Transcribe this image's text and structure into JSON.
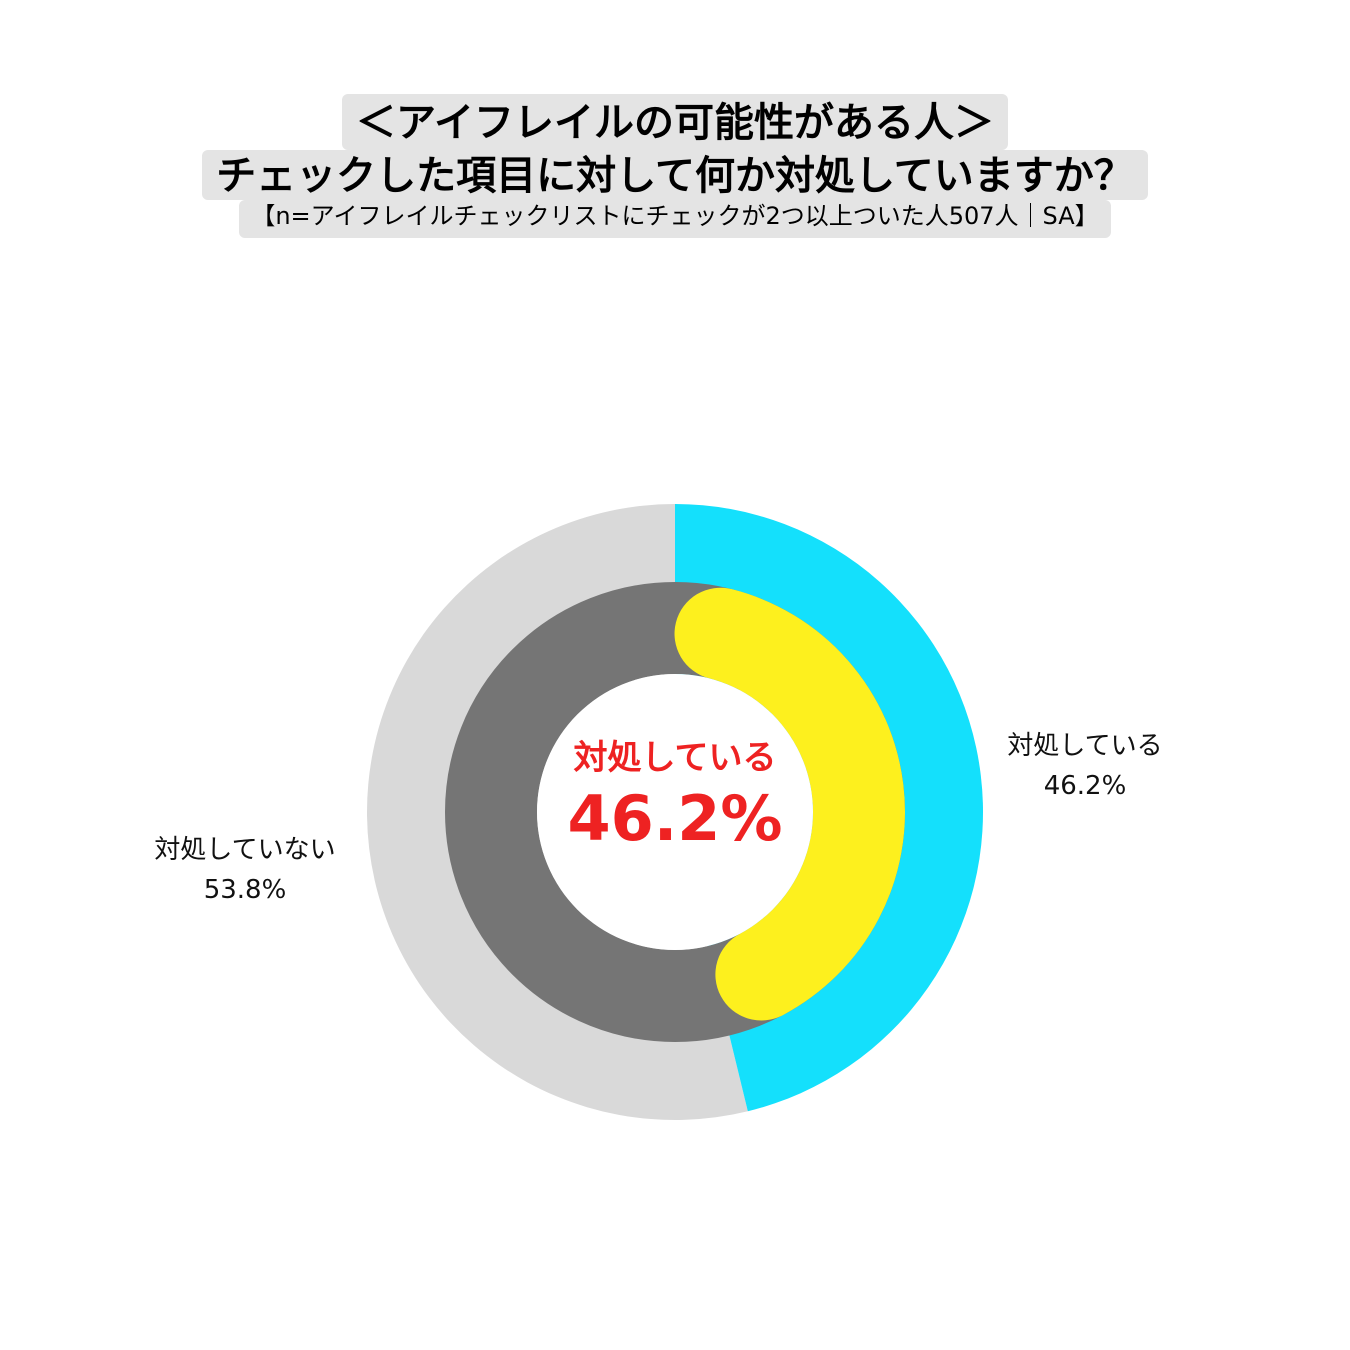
{
  "header": {
    "title_line1": "＜アイフレイルの可能性がある人＞",
    "title_line2": "チェックした項目に対して何か対処していますか？",
    "subtitle": "【n=アイフレイルチェックリストにチェックが2つ以上ついた人507人｜SA】"
  },
  "center": {
    "category": "対処している",
    "value": "46.2%"
  },
  "labels": {
    "right_name": "対処している",
    "right_value": "46.2%",
    "left_name": "対処していない",
    "left_value": "53.8%"
  },
  "chart_data": {
    "type": "pie",
    "style": "donut",
    "title": "",
    "categories": [
      "対処している",
      "対処していない"
    ],
    "values": [
      46.2,
      53.8
    ],
    "unit": "%",
    "colors": {
      "outer_positive": "#14e0fc",
      "outer_negative": "#d9d9d9",
      "inner_positive": "#fdf01e",
      "inner_negative": "#757575",
      "highlight_text": "#ee2222"
    }
  }
}
